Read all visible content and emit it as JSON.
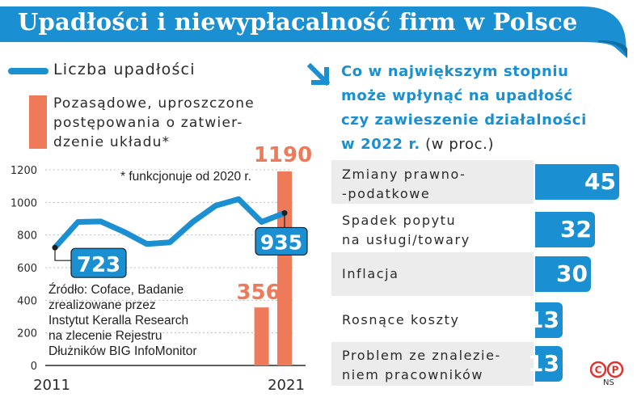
{
  "title": "Upadłości i niewypłacalność firm w Polsce",
  "colors": {
    "blue": "#1a8fd1",
    "orange": "#ee7a5a",
    "grey": "#ececec",
    "dark": "#2a2a2a"
  },
  "legend": {
    "line_label": "Liczba upadłości",
    "bar_label_1": "Pozasądowe, uproszczone",
    "bar_label_2": "postępowania o zatwier-",
    "bar_label_3": "dzenie układu*"
  },
  "footnote": "* funkcjonuje od 2020 r.",
  "source": {
    "line1": "Źródło: Coface, Badanie",
    "line2": "zrealizowane przez",
    "line3": "Instytut Keralla Research",
    "line4": "na zlecenie Rejestru",
    "line5": "Dłużników BIG InfoMonitor"
  },
  "right_heading": {
    "line1": "Co w największym stopniu",
    "line2": "może wpłynąć na upadłość",
    "line3": "czy zawieszenie działalności",
    "line4_bold": "w 2022 r.",
    "line4_rest": " (w proc.)"
  },
  "logo": {
    "name": "copyright-phonographic-logo",
    "initials": "NS"
  },
  "chart_data": [
    {
      "type": "line",
      "x": [
        2011,
        2012,
        2013,
        2014,
        2015,
        2016,
        2017,
        2018,
        2019,
        2020,
        2021
      ],
      "x_tick_labels": [
        "2011",
        "2021"
      ],
      "series": [
        {
          "name": "Liczba upadłości",
          "values": [
            723,
            880,
            883,
            820,
            745,
            755,
            880,
            980,
            1020,
            880,
            935
          ]
        },
        {
          "name": "Pozasądowe, uproszczone postępowania o zatwierdzenie układu*",
          "type": "bar",
          "x": [
            2020,
            2021
          ],
          "values": [
            356,
            1190
          ]
        }
      ],
      "labels": {
        "first": "723",
        "last": "935",
        "bar_2020": "356",
        "bar_2021": "1190"
      },
      "yticks": [
        "0",
        "200",
        "400",
        "600",
        "800",
        "1000",
        "1200"
      ],
      "ylim": [
        0,
        1250
      ],
      "grid": true
    },
    {
      "type": "bar",
      "orientation": "horizontal",
      "categories": [
        {
          "line1": "Zmiany prawno-",
          "line2": "-podatkowe"
        },
        {
          "line1": "Spadek popytu",
          "line2": "na usługi/towary"
        },
        {
          "line1": "Inflacja",
          "line2": ""
        },
        {
          "line1": "Rosnące koszty",
          "line2": ""
        },
        {
          "line1": "Problem ze znalezie-",
          "line2": "niem pracowników"
        }
      ],
      "values": [
        45,
        32,
        30,
        13,
        13
      ],
      "value_labels": [
        "45",
        "32",
        "30",
        "13",
        "13"
      ]
    }
  ]
}
